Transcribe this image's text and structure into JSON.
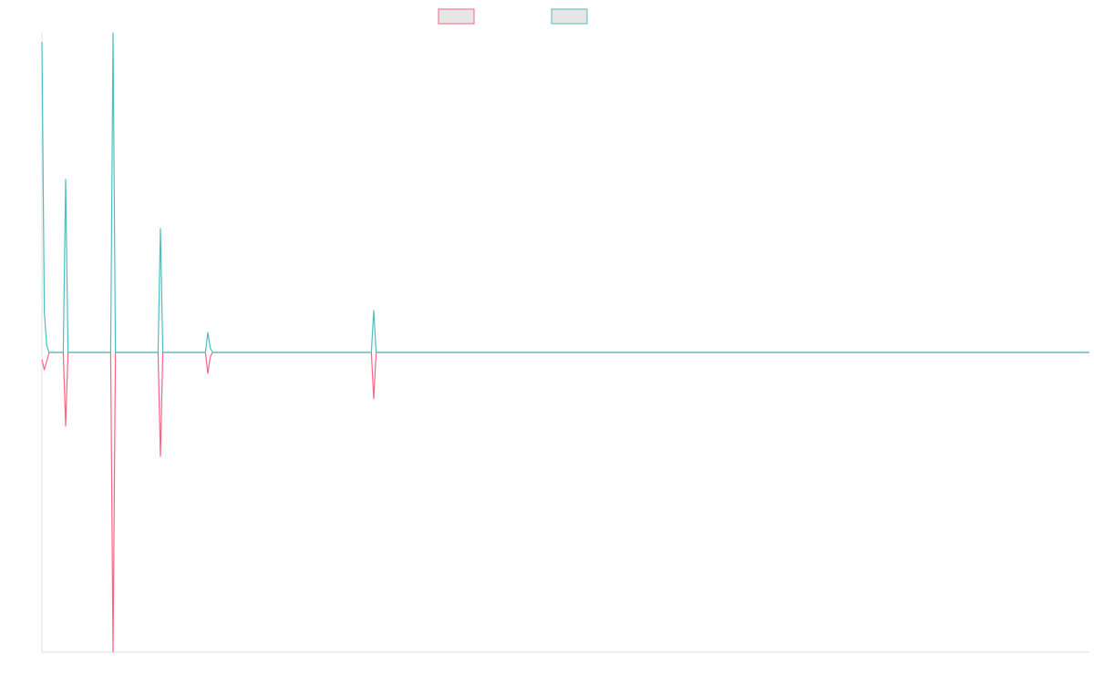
{
  "chart_data": {
    "type": "line",
    "x": [
      0,
      1,
      2,
      3,
      9,
      10,
      11,
      29,
      30,
      31,
      49,
      50,
      51,
      69,
      70,
      71,
      72,
      139,
      140,
      141,
      442
    ],
    "xlim": [
      0,
      442
    ],
    "ylim": [
      -329,
      351
    ],
    "series": [
      {
        "color": "#ff6384",
        "values": [
          -8,
          -19,
          -10,
          0,
          0,
          -81,
          0,
          0,
          -329,
          0,
          0,
          -114,
          0,
          0,
          -23,
          -5,
          0,
          0,
          -51,
          0,
          0
        ]
      },
      {
        "color": "#4bc0c0",
        "values": [
          341,
          45,
          8,
          0,
          0,
          190,
          0,
          0,
          351,
          0,
          0,
          136,
          0,
          0,
          22,
          5,
          0,
          0,
          46,
          0,
          0
        ]
      }
    ]
  }
}
